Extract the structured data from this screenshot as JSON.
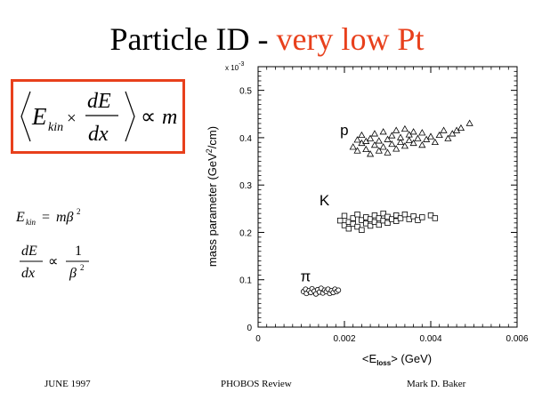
{
  "slide": {
    "title_main": "Particle ID - ",
    "title_accent": "very low Pt",
    "accent_color": "#e8401c",
    "footer_left": "JUNE 1997",
    "footer_center": "PHOBOS Review",
    "footer_right": "Mark D. Baker"
  },
  "formulas": {
    "boxed": {
      "ekin_base": "E",
      "ekin_sub": "kin",
      "times": "×",
      "frac_num": "dE",
      "frac_den": "dx",
      "proportional": "∝",
      "rhs": "m"
    },
    "energy": {
      "lhs_base": "E",
      "lhs_sub": "kin",
      "equals": "=",
      "rhs_base": "mβ",
      "rhs_exp": "2"
    },
    "dedx": {
      "frac_num": "dE",
      "frac_den": "dx",
      "proportional": "∝",
      "rhs_num": "1",
      "rhs_den_base": "β",
      "rhs_den_exp": "2"
    }
  },
  "chart_data": {
    "type": "scatter",
    "title": "",
    "xlabel": "<E_loss> (GeV)",
    "xlabel_parts": {
      "open": "<E",
      "sub": "loss",
      "close": "> (GeV)"
    },
    "ylabel": "mass parameter (GeV²/cm)",
    "ylabel_parts": {
      "before": "mass parameter (GeV",
      "sup": "2",
      "after": "/cm)"
    },
    "y_multiplier": "x 10",
    "y_multiplier_exp": "-3",
    "xlim": [
      0,
      0.006
    ],
    "ylim": [
      0,
      0.55
    ],
    "x_ticks": [
      "0",
      "0.002",
      "0.004",
      "0.006"
    ],
    "y_ticks": [
      "0",
      "0.1",
      "0.2",
      "0.3",
      "0.4",
      "0.5"
    ],
    "grid": false,
    "annotations": [
      {
        "text": "p",
        "x": 0.0019,
        "y": 0.405
      },
      {
        "text": "K",
        "x": 0.00142,
        "y": 0.257
      },
      {
        "text": "π",
        "x": 0.00098,
        "y": 0.097
      }
    ],
    "series": [
      {
        "marker": "triangle",
        "values": [
          [
            0.0022,
            0.38
          ],
          [
            0.0023,
            0.395
          ],
          [
            0.0023,
            0.372
          ],
          [
            0.0024,
            0.388
          ],
          [
            0.0024,
            0.405
          ],
          [
            0.0025,
            0.375
          ],
          [
            0.0025,
            0.392
          ],
          [
            0.0026,
            0.365
          ],
          [
            0.0026,
            0.398
          ],
          [
            0.0027,
            0.384
          ],
          [
            0.0027,
            0.408
          ],
          [
            0.0028,
            0.372
          ],
          [
            0.0028,
            0.393
          ],
          [
            0.0029,
            0.38
          ],
          [
            0.0029,
            0.412
          ],
          [
            0.003,
            0.368
          ],
          [
            0.003,
            0.396
          ],
          [
            0.0031,
            0.386
          ],
          [
            0.0031,
            0.404
          ],
          [
            0.0032,
            0.376
          ],
          [
            0.0032,
            0.415
          ],
          [
            0.0033,
            0.39
          ],
          [
            0.0033,
            0.4
          ],
          [
            0.0034,
            0.382
          ],
          [
            0.0034,
            0.418
          ],
          [
            0.0035,
            0.394
          ],
          [
            0.0035,
            0.406
          ],
          [
            0.0036,
            0.388
          ],
          [
            0.0036,
            0.412
          ],
          [
            0.0037,
            0.398
          ],
          [
            0.0038,
            0.384
          ],
          [
            0.0038,
            0.41
          ],
          [
            0.0039,
            0.396
          ],
          [
            0.004,
            0.402
          ],
          [
            0.0041,
            0.39
          ],
          [
            0.0042,
            0.405
          ],
          [
            0.0043,
            0.415
          ],
          [
            0.0044,
            0.398
          ],
          [
            0.0045,
            0.408
          ],
          [
            0.0046,
            0.415
          ],
          [
            0.0047,
            0.42
          ],
          [
            0.0049,
            0.43
          ]
        ]
      },
      {
        "marker": "square",
        "values": [
          [
            0.0019,
            0.225
          ],
          [
            0.002,
            0.215
          ],
          [
            0.002,
            0.235
          ],
          [
            0.0021,
            0.222
          ],
          [
            0.0021,
            0.208
          ],
          [
            0.0022,
            0.23
          ],
          [
            0.0022,
            0.218
          ],
          [
            0.0023,
            0.238
          ],
          [
            0.0023,
            0.212
          ],
          [
            0.0024,
            0.226
          ],
          [
            0.0024,
            0.205
          ],
          [
            0.0025,
            0.232
          ],
          [
            0.0025,
            0.219
          ],
          [
            0.0026,
            0.228
          ],
          [
            0.0026,
            0.214
          ],
          [
            0.0027,
            0.236
          ],
          [
            0.0027,
            0.222
          ],
          [
            0.0028,
            0.23
          ],
          [
            0.0028,
            0.216
          ],
          [
            0.0029,
            0.24
          ],
          [
            0.0029,
            0.225
          ],
          [
            0.003,
            0.233
          ],
          [
            0.003,
            0.22
          ],
          [
            0.0031,
            0.228
          ],
          [
            0.0032,
            0.236
          ],
          [
            0.0032,
            0.224
          ],
          [
            0.0033,
            0.23
          ],
          [
            0.0034,
            0.238
          ],
          [
            0.0035,
            0.228
          ],
          [
            0.0036,
            0.234
          ],
          [
            0.0037,
            0.226
          ],
          [
            0.0038,
            0.232
          ],
          [
            0.004,
            0.236
          ],
          [
            0.0041,
            0.23
          ]
        ]
      },
      {
        "marker": "circle",
        "values": [
          [
            0.00105,
            0.075
          ],
          [
            0.0011,
            0.08
          ],
          [
            0.00112,
            0.071
          ],
          [
            0.00118,
            0.077
          ],
          [
            0.00122,
            0.073
          ],
          [
            0.00125,
            0.081
          ],
          [
            0.0013,
            0.076
          ],
          [
            0.00134,
            0.07
          ],
          [
            0.00138,
            0.079
          ],
          [
            0.00142,
            0.074
          ],
          [
            0.00146,
            0.082
          ],
          [
            0.0015,
            0.072
          ],
          [
            0.00154,
            0.078
          ],
          [
            0.00158,
            0.075
          ],
          [
            0.00162,
            0.08
          ],
          [
            0.00166,
            0.071
          ],
          [
            0.0017,
            0.077
          ],
          [
            0.00174,
            0.073
          ],
          [
            0.00178,
            0.08
          ],
          [
            0.00182,
            0.075
          ],
          [
            0.00186,
            0.078
          ]
        ]
      }
    ]
  }
}
